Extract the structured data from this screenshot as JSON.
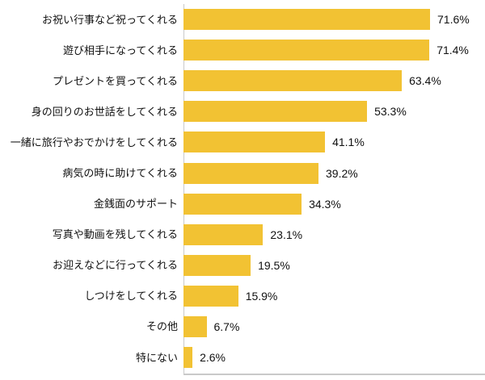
{
  "chart_data": {
    "type": "bar",
    "orientation": "horizontal",
    "title": "",
    "xlabel": "",
    "ylabel": "",
    "grid": false,
    "legend": null,
    "xlim": [
      0,
      88
    ],
    "categories": [
      "お祝い行事など祝ってくれる",
      "遊び相手になってくれる",
      "プレゼントを買ってくれる",
      "身の回りのお世話をしてくれる",
      "一緒に旅行やおでかけをしてくれる",
      "病気の時に助けてくれる",
      "金銭面のサポート",
      "写真や動画を残してくれる",
      "お迎えなどに行ってくれる",
      "しつけをしてくれる",
      "その他",
      "特にない"
    ],
    "values": [
      71.6,
      71.4,
      63.4,
      53.3,
      41.1,
      39.2,
      34.3,
      23.1,
      19.5,
      15.9,
      6.7,
      2.6
    ],
    "value_labels": [
      "71.6%",
      "71.4%",
      "63.4%",
      "53.3%",
      "41.1%",
      "39.2%",
      "34.3%",
      "23.1%",
      "19.5%",
      "15.9%",
      "6.7%",
      "2.6%"
    ],
    "bar_color": "#F2C233",
    "axis_color": "#C9C9C9",
    "text_color": "#111111"
  }
}
